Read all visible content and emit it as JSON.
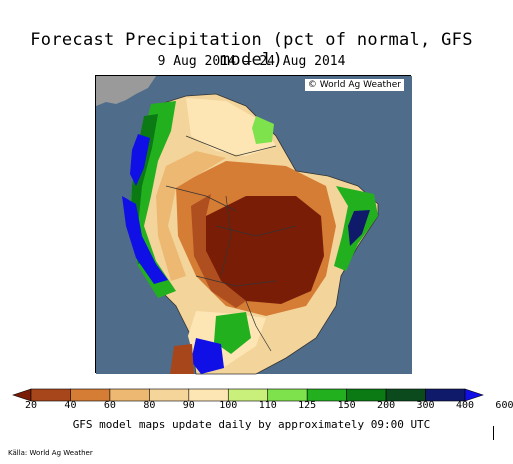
{
  "title": "Forecast Precipitation (pct of normal, GFS model)",
  "subtitle": "9 Aug 2014 — 24 Aug 2014",
  "map": {
    "credit": "© World Ag Weather",
    "ocean_color": "#4f6d8a",
    "land_color": "#9a9a9a"
  },
  "legend": {
    "ticks": [
      "20",
      "40",
      "60",
      "80",
      "90",
      "100",
      "110",
      "125",
      "150",
      "200",
      "300",
      "400",
      "600"
    ],
    "colors": [
      "#7a1d07",
      "#a8461b",
      "#d57c35",
      "#edb872",
      "#f6d59a",
      "#fde6b4",
      "#c8f07a",
      "#7ee24c",
      "#22b01e",
      "#0c7a14",
      "#0a4a1c",
      "#101a6a",
      "#1010e6"
    ]
  },
  "footer_note": "GFS model maps update daily by approximately 09:00 UTC",
  "source": "Källa: World Ag Weather"
}
